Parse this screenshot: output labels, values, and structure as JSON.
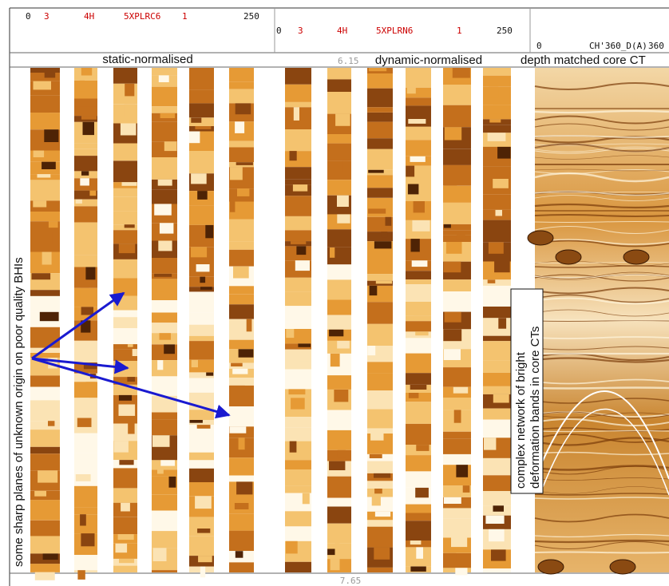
{
  "header": {
    "track1": [
      "0",
      "3",
      "4H",
      "5XPLRC6",
      "1",
      "250"
    ],
    "track2": [
      "0",
      "3",
      "4H",
      "5XPLRN6",
      "1",
      "250"
    ],
    "track3": [
      "0",
      "CH'360_D(A)",
      "360"
    ]
  },
  "titles": {
    "static": "static-normalised",
    "top_depth": "6.15",
    "dynamic": "dynamic-normalised",
    "core": "depth matched core CT"
  },
  "bottom_depth": "7.65",
  "annotations": {
    "left": "some sharp planes of unknown origin on poor quality BHIs",
    "right": [
      "complex network of bright",
      "deformation bands in core CTs"
    ]
  }
}
